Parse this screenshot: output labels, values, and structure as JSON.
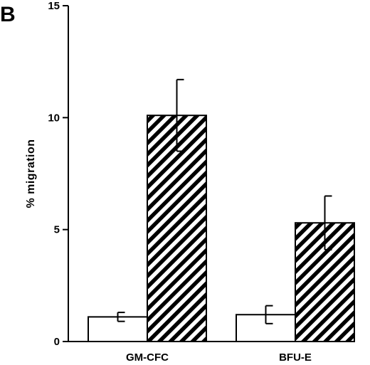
{
  "panel_label": "B",
  "chart_data": {
    "type": "bar",
    "title": "",
    "xlabel": "",
    "ylabel": "% migration",
    "ylim": [
      0,
      15
    ],
    "yticks": [
      0,
      5,
      10,
      15
    ],
    "categories": [
      "GM-CFC",
      "BFU-E"
    ],
    "series": [
      {
        "style": "open",
        "fill": "#ffffff",
        "values": [
          1.1,
          1.2
        ],
        "errors": [
          0.2,
          0.4
        ]
      },
      {
        "style": "hatched",
        "fill": "#000000",
        "values": [
          10.1,
          5.3
        ],
        "errors": [
          1.6,
          1.2
        ]
      }
    ],
    "grid": false,
    "legend": "none"
  }
}
